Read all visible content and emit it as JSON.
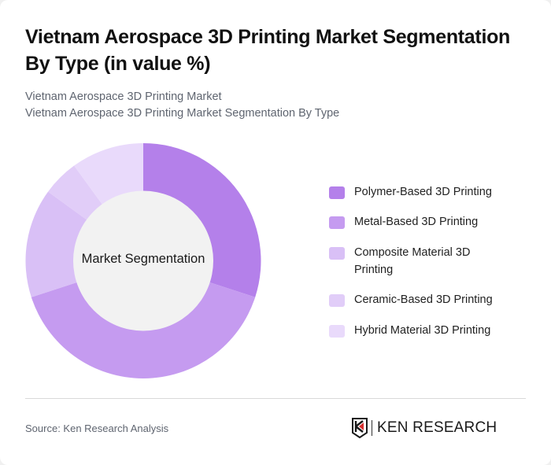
{
  "header": {
    "title": "Vietnam Aerospace 3D Printing Market Segmentation By Type (in value %)",
    "subtitle_line1": "Vietnam Aerospace 3D Printing Market",
    "subtitle_line2": "Vietnam Aerospace 3D Printing Market Segmentation By Type"
  },
  "chart_data": {
    "type": "pie",
    "subtype": "donut",
    "title": "Vietnam Aerospace 3D Printing Market Segmentation By Type (in value %)",
    "center_label": "Market Segmentation",
    "categories": [
      "Polymer-Based 3D Printing",
      "Metal-Based 3D Printing",
      "Composite Material 3D Printing",
      "Ceramic-Based 3D Printing",
      "Hybrid Material 3D Printing"
    ],
    "values": [
      30,
      40,
      15,
      5,
      10
    ],
    "colors": [
      "#b480ea",
      "#c59bf0",
      "#d9c0f6",
      "#e1cdf8",
      "#e9dafb"
    ],
    "legend_position": "right",
    "unit": "%"
  },
  "legend": {
    "items": [
      {
        "label": "Polymer-Based 3D Printing",
        "color": "#b480ea"
      },
      {
        "label": "Metal-Based 3D Printing",
        "color": "#c59bf0"
      },
      {
        "label": "Composite Material 3D Printing",
        "color": "#d9c0f6"
      },
      {
        "label": "Ceramic-Based 3D Printing",
        "color": "#e1cdf8"
      },
      {
        "label": "Hybrid Material 3D Printing",
        "color": "#e9dafb"
      }
    ]
  },
  "footer": {
    "source": "Source: Ken Research Analysis",
    "logo_text": "KEN RESEARCH"
  }
}
